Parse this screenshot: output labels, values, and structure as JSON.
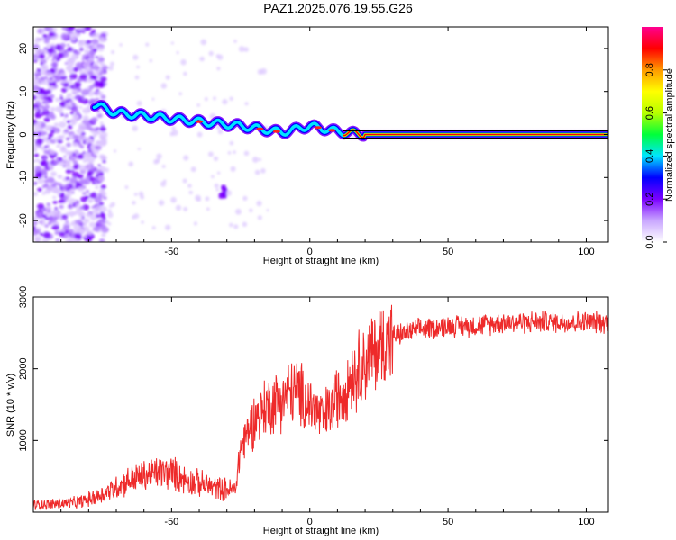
{
  "title": "PAZ1.2025.076.19.55.G26",
  "chart_data": [
    {
      "type": "heatmap",
      "xlabel": "Height of straight line (km)",
      "ylabel": "Frequency (Hz)",
      "xlim": [
        -100,
        108
      ],
      "ylim": [
        -25,
        25
      ],
      "xticks": [
        -50,
        0,
        50,
        100
      ],
      "yticks": [
        -20,
        -10,
        0,
        10,
        20
      ],
      "colorbar": {
        "label": "Normalized spectral amplitude",
        "range": [
          0,
          1
        ],
        "ticks": [
          "0.0",
          "0.2",
          "0.4",
          "0.6",
          "0.8"
        ],
        "colors": [
          "#ffffff",
          "#c9a6ff",
          "#7b00ff",
          "#0000ff",
          "#00e5ff",
          "#00ff3a",
          "#b8ff00",
          "#ffff00",
          "#ff9a00",
          "#ff0000",
          "#ff0090"
        ]
      },
      "ridge": {
        "description_points": [
          {
            "x": -78,
            "y": 7
          },
          {
            "x": -70,
            "y": 5
          },
          {
            "x": -55,
            "y": 4
          },
          {
            "x": -40,
            "y": 3
          },
          {
            "x": -25,
            "y": 2
          },
          {
            "x": -10,
            "y": 0.5
          },
          {
            "x": 0,
            "y": 2
          },
          {
            "x": 10,
            "y": 0.7
          },
          {
            "x": 20,
            "y": 0
          },
          {
            "x": 108,
            "y": 0
          }
        ]
      }
    },
    {
      "type": "line",
      "xlabel": "Height of straight line (km)",
      "ylabel": "SNR (10 * v/v)",
      "xlim": [
        -100,
        108
      ],
      "ylim": [
        0,
        3000
      ],
      "xticks": [
        -50,
        0,
        50,
        100
      ],
      "yticks": [
        1000,
        2000,
        3000
      ],
      "series": [
        {
          "color": "#ee2a2a",
          "x": [
            -100,
            -95,
            -90,
            -85,
            -80,
            -75,
            -70,
            -65,
            -60,
            -55,
            -50,
            -45,
            -40,
            -35,
            -30,
            -27,
            -25,
            -20,
            -15,
            -10,
            -5,
            0,
            5,
            10,
            15,
            20,
            25,
            30,
            40,
            50,
            60,
            70,
            80,
            90,
            100,
            108
          ],
          "y": [
            100,
            110,
            120,
            130,
            180,
            250,
            350,
            450,
            500,
            550,
            550,
            450,
            400,
            350,
            320,
            300,
            900,
            1300,
            1500,
            1600,
            1700,
            1500,
            1300,
            1600,
            1900,
            2100,
            2300,
            2450,
            2550,
            2600,
            2600,
            2650,
            2650,
            2650,
            2650,
            2650
          ]
        }
      ]
    }
  ]
}
